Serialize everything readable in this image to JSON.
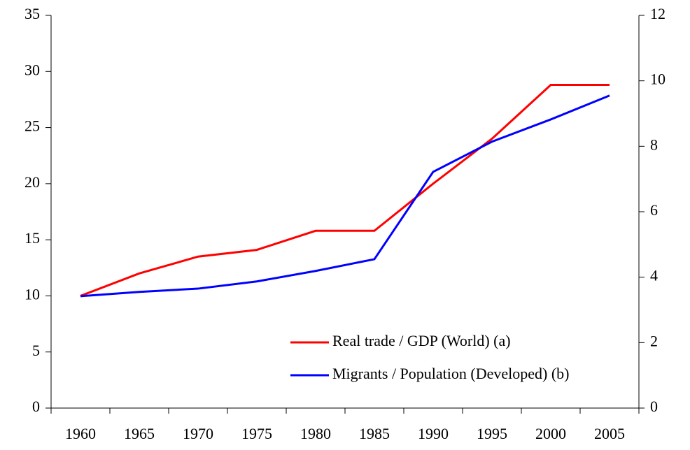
{
  "chart_data": {
    "type": "line",
    "categories": [
      "1960",
      "1965",
      "1970",
      "1975",
      "1980",
      "1985",
      "1990",
      "1995",
      "2000",
      "2005"
    ],
    "series": [
      {
        "name": "Real trade / GDP (World) (a)",
        "color": "#ff0000",
        "values": [
          10,
          12,
          13.5,
          14.1,
          15.8,
          15.8,
          20,
          24,
          28.8,
          28.8
        ]
      },
      {
        "name": "Migrants / Population (Developed) (b)",
        "color": "#0000ff",
        "axis": "y2",
        "values": [
          3.42,
          3.55,
          3.65,
          3.87,
          4.19,
          4.55,
          7.22,
          8.14,
          8.82,
          9.55
        ]
      }
    ],
    "ylim": [
      0,
      35
    ],
    "yticks": [
      0,
      5,
      10,
      15,
      20,
      25,
      30,
      35
    ],
    "y2lim": [
      0,
      12
    ],
    "y2ticks": [
      0,
      2,
      4,
      6,
      8,
      10,
      12
    ],
    "legend": "lower right"
  }
}
